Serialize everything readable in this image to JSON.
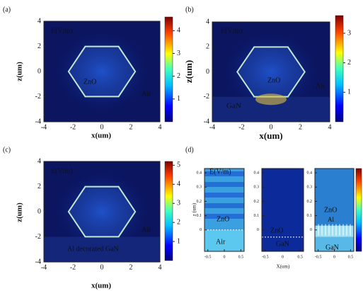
{
  "chart_data": [
    {
      "type": "heatmap",
      "panel": "(a)",
      "xlabel": "x(um)",
      "ylabel": "z(um)",
      "xlim": [
        -4,
        4
      ],
      "ylim": [
        -4,
        4
      ],
      "xticks": [
        -4,
        -2,
        0,
        2,
        4
      ],
      "yticks": [
        -4,
        -2,
        0,
        2,
        4
      ],
      "clim": [
        0,
        4.6
      ],
      "cticks": [
        1,
        2,
        3,
        4
      ],
      "annotations": [
        "E(V/m)",
        "ZnO",
        "Air"
      ]
    },
    {
      "type": "heatmap",
      "panel": "(b)",
      "xlabel": "x(um)",
      "ylabel": "z(um)",
      "xlim": [
        -4,
        4
      ],
      "ylim": [
        -4,
        4
      ],
      "xticks": [
        -4,
        -2,
        0,
        2,
        4
      ],
      "yticks": [
        -4,
        -2,
        0,
        2,
        4
      ],
      "clim": [
        0,
        3.6
      ],
      "cticks": [
        1,
        2,
        3
      ],
      "annotations": [
        "E(V/m)",
        "ZnO",
        "Air",
        "GaN"
      ]
    },
    {
      "type": "heatmap",
      "panel": "(c)",
      "xlabel": "x(um)",
      "ylabel": "z(um)",
      "xlim": [
        -4,
        4
      ],
      "ylim": [
        -4,
        4
      ],
      "xticks": [
        -4,
        -2,
        0,
        2,
        4
      ],
      "yticks": [
        -4,
        -2,
        0,
        2,
        4
      ],
      "clim": [
        0,
        5.2
      ],
      "cticks": [
        1,
        2,
        3,
        4,
        5
      ],
      "annotations": [
        "E(V/m)",
        "Air",
        "Al decorated GaN"
      ]
    },
    {
      "type": "multi",
      "panel": "(d)",
      "xlabel": "X(um)",
      "ylabel": "z (um)",
      "subplots": [
        {
          "type": "heatmap",
          "xlim": [
            -0.6,
            0.6
          ],
          "ylim": [
            -0.15,
            0.43
          ],
          "xticks": [
            -0.5,
            0,
            0.5
          ],
          "yticks": [
            0,
            0.1,
            0.2,
            0.3,
            0.4
          ],
          "annotations": [
            "E(V/m)",
            "ZnO",
            "Air"
          ]
        },
        {
          "type": "heatmap",
          "xlim": [
            -0.6,
            0.6
          ],
          "ylim": [
            -0.15,
            0.43
          ],
          "xticks": [
            -0.5,
            0,
            0.5
          ],
          "yticks": [
            0,
            0.1,
            0.2,
            0.3,
            0.4
          ],
          "annotations": [
            "ZnO",
            "GaN"
          ]
        },
        {
          "type": "heatmap",
          "xlim": [
            -0.6,
            0.6
          ],
          "ylim": [
            -0.15,
            0.43
          ],
          "xticks": [
            -0.5,
            0,
            0.5
          ],
          "yticks": [
            0,
            0.1,
            0.2,
            0.3,
            0.4
          ],
          "annotations": [
            "ZnO",
            "Al",
            "GaN"
          ]
        }
      ]
    }
  ]
}
